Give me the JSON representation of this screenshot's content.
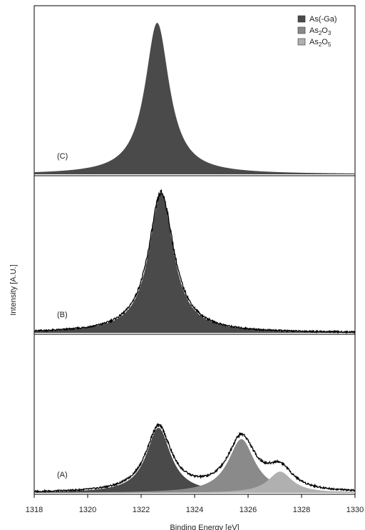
{
  "chart_data": {
    "type": "area",
    "xlabel": "Binding Energy [eV]",
    "ylabel": "Intensity [A.U.]",
    "xlim": [
      1318,
      1330
    ],
    "x_ticks": [
      "1318",
      "1320",
      "1322",
      "1324",
      "1326",
      "1328",
      "1330"
    ],
    "grid": false,
    "legend_position": "top-right",
    "legend": [
      {
        "label": "As(-Ga)",
        "sub": "",
        "color": "#4a4a4a"
      },
      {
        "label": "As",
        "sub": "2",
        "label2": "O",
        "sub2": "3",
        "color": "#8a8a8a"
      },
      {
        "label": "As",
        "sub": "2",
        "label2": "O",
        "sub2": "5",
        "color": "#b0b0b0"
      }
    ],
    "panels": [
      {
        "label": "(C)",
        "components": [
          {
            "name": "As(-Ga)",
            "center": 1322.6,
            "height": 1.0,
            "width": 0.55,
            "color": "#4a4a4a"
          }
        ],
        "measured": false
      },
      {
        "label": "(B)",
        "components": [
          {
            "name": "As(-Ga)",
            "center": 1322.75,
            "height": 1.0,
            "width": 0.55,
            "color": "#4a4a4a"
          }
        ],
        "measured": true
      },
      {
        "label": "(A)",
        "components": [
          {
            "name": "As(-Ga)",
            "center": 1322.65,
            "height": 0.46,
            "width": 0.55,
            "color": "#4a4a4a"
          },
          {
            "name": "As2O3",
            "center": 1325.75,
            "height": 0.38,
            "width": 0.6,
            "color": "#8a8a8a"
          },
          {
            "name": "As2O5",
            "center": 1327.2,
            "height": 0.15,
            "width": 0.55,
            "color": "#b0b0b0"
          }
        ],
        "measured": true
      }
    ]
  }
}
